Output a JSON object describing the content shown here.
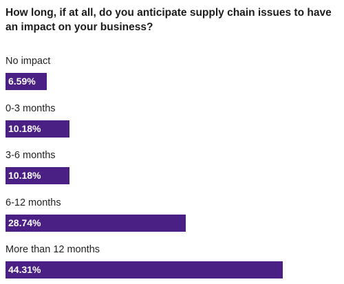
{
  "chart_data": {
    "type": "bar",
    "orientation": "horizontal",
    "title": "How long, if at all, do you anticipate supply chain issues to have an impact on your business?",
    "categories": [
      "No impact",
      "0-3 months",
      "3-6 months",
      "6-12 months",
      "More than 12 months"
    ],
    "values": [
      6.59,
      10.18,
      10.18,
      28.74,
      44.31
    ],
    "value_labels": [
      "6.59%",
      "10.18%",
      "10.18%",
      "28.74%",
      "44.31%"
    ],
    "unit": "%",
    "xlim": [
      0,
      45
    ],
    "grid": false,
    "legend": "none",
    "bar_color": "#4a2085",
    "label_color": "#ffffff"
  }
}
